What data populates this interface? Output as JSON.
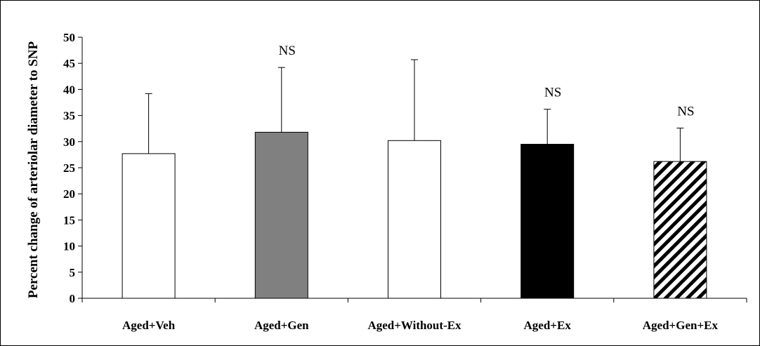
{
  "chart_data": {
    "type": "bar",
    "title": "",
    "xlabel": "",
    "ylabel": "Percent change of arteriolar diameter to SNP",
    "ylim": [
      0,
      50
    ],
    "yticks": [
      0,
      5,
      10,
      15,
      20,
      25,
      30,
      35,
      40,
      45,
      50
    ],
    "grid": false,
    "legend": "none",
    "categories": [
      "Aged+Veh",
      "Aged+Gen",
      "Aged+Without-Ex",
      "Aged+Ex",
      "Aged+Gen+Ex"
    ],
    "values": [
      27.7,
      31.8,
      30.2,
      29.5,
      26.2
    ],
    "errors": [
      11.5,
      12.4,
      15.5,
      6.7,
      6.4
    ],
    "bar_fills": [
      "white",
      "gray",
      "white",
      "black",
      "hatched"
    ],
    "annotations": [
      "",
      "NS",
      "",
      "NS",
      "NS"
    ],
    "colors": {
      "gray": "#808080",
      "black": "#000000",
      "white": "#ffffff"
    }
  }
}
